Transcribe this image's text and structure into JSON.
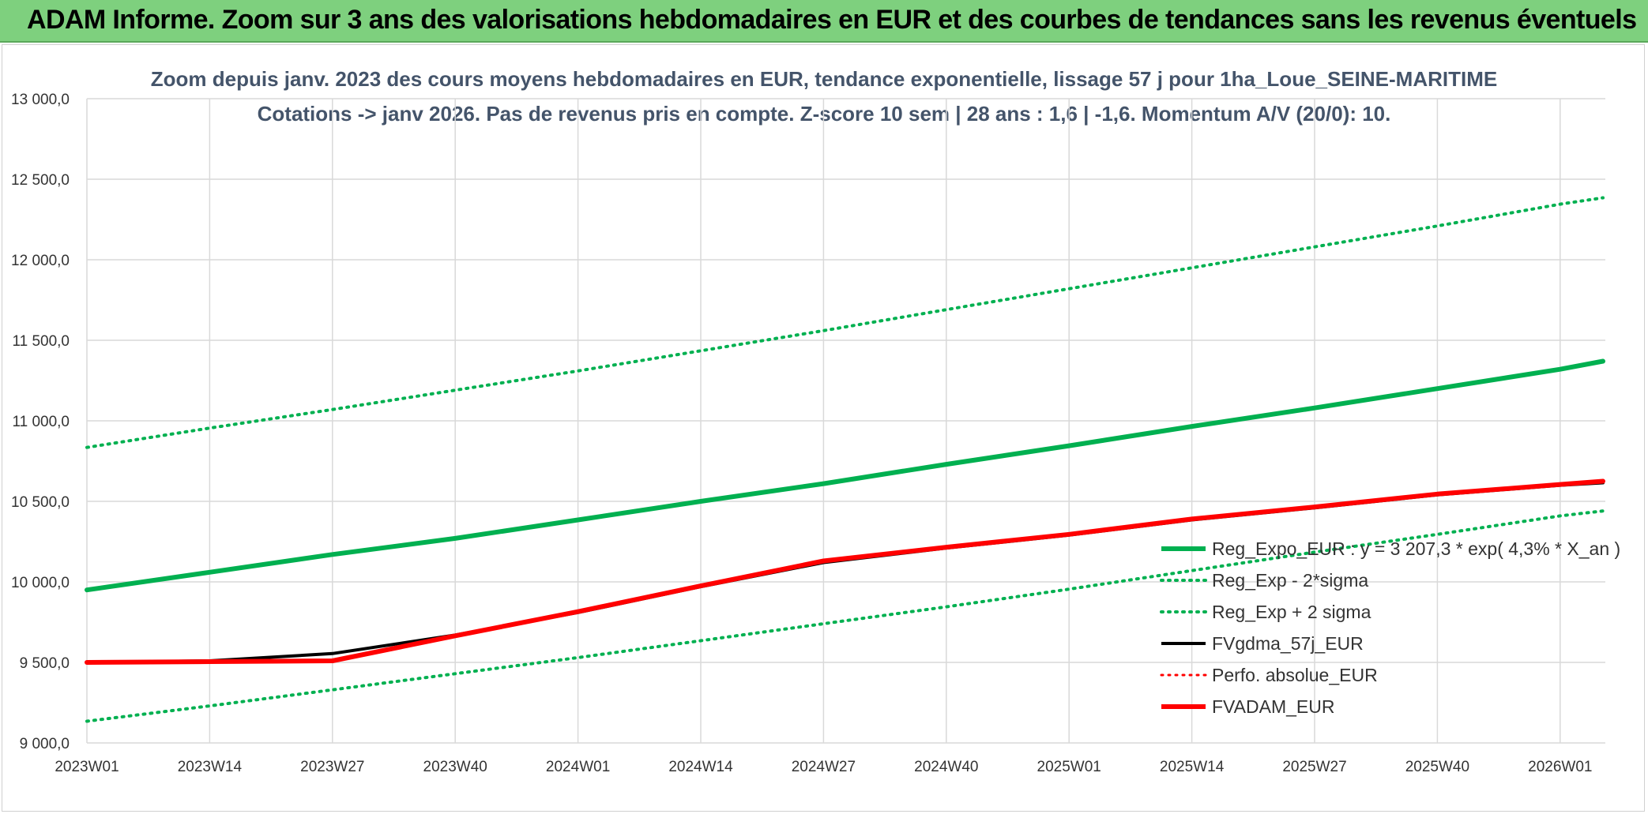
{
  "header": {
    "banner": "ADAM Informe. Zoom sur 3 ans des valorisations hebdomadaires en EUR et des courbes de tendances sans les revenus éventuels"
  },
  "colors": {
    "banner_bg": "#7ed07e",
    "trend": "#00b050",
    "black": "#000000",
    "red": "#ff0000",
    "grid": "#d9d9d9"
  },
  "chart_data": {
    "type": "line",
    "title": "Zoom depuis janv. 2023 des cours moyens hebdomadaires en EUR, tendance exponentielle, lissage 57 j pour 1ha_Loue_SEINE-MARITIME",
    "subtitle": "Cotations -> janv 2026. Pas de revenus pris en compte. Z-score 10 sem | 28 ans : 1,6 | -1,6. Momentum A/V (20/0): 10.",
    "xlabel": "",
    "ylabel": "",
    "ylim": [
      9000,
      13000
    ],
    "yticks": [
      9000,
      9500,
      10000,
      10500,
      11000,
      11500,
      12000,
      12500,
      13000
    ],
    "ytick_labels": [
      "9 000,0",
      "9 500,0",
      "10 000,0",
      "10 500,0",
      "11 000,0",
      "11 500,0",
      "12 000,0",
      "12 500,0",
      "13 000,0"
    ],
    "x_tick_labels": [
      "2023W01",
      "2023W14",
      "2023W27",
      "2023W40",
      "2024W01",
      "2024W14",
      "2024W27",
      "2024W40",
      "2025W01",
      "2025W14",
      "2025W27",
      "2025W40",
      "2026W01"
    ],
    "grid": true,
    "legend_position": "right",
    "x": [
      "2023W01",
      "2023W14",
      "2023W27",
      "2023W40",
      "2024W01",
      "2024W14",
      "2024W27",
      "2024W40",
      "2025W01",
      "2025W14",
      "2025W27",
      "2025W40",
      "2026W01",
      "2026W05"
    ],
    "series": [
      {
        "name": "Reg_Expo_EUR : y = 3 207,3 * exp( 4,3% *  X_an )",
        "color": "#00b050",
        "style": "solid",
        "width": 6,
        "values": [
          9950,
          10060,
          10170,
          10270,
          10385,
          10500,
          10610,
          10730,
          10845,
          10965,
          11080,
          11200,
          11320,
          11370
        ]
      },
      {
        "name": "Reg_Exp - 2*sigma",
        "color": "#00b050",
        "style": "dotted",
        "width": 4,
        "values": [
          9135,
          9230,
          9330,
          9430,
          9530,
          9635,
          9740,
          9845,
          9955,
          10070,
          10185,
          10295,
          10410,
          10440
        ]
      },
      {
        "name": "Reg_Exp + 2 sigma",
        "color": "#00b050",
        "style": "dotted",
        "width": 4,
        "values": [
          10835,
          10955,
          11070,
          11190,
          11310,
          11435,
          11560,
          11690,
          11820,
          11950,
          12080,
          12210,
          12345,
          12385
        ]
      },
      {
        "name": "FVgdma_57j_EUR",
        "color": "#000000",
        "style": "solid",
        "width": 4,
        "values": [
          9500,
          9510,
          9555,
          9670,
          9810,
          9970,
          10120,
          10210,
          10290,
          10385,
          10460,
          10540,
          10600,
          10615
        ]
      },
      {
        "name": "Perfo. absolue_EUR",
        "color": "#ff0000",
        "style": "dotted",
        "width": 3,
        "values": [
          9500,
          9505,
          9510,
          9665,
          9815,
          9975,
          10130,
          10215,
          10295,
          10390,
          10465,
          10545,
          10605,
          10625
        ]
      },
      {
        "name": "FVADAM_EUR",
        "color": "#ff0000",
        "style": "solid",
        "width": 6,
        "values": [
          9500,
          9505,
          9510,
          9665,
          9815,
          9975,
          10130,
          10215,
          10295,
          10390,
          10465,
          10545,
          10605,
          10625
        ]
      }
    ]
  }
}
